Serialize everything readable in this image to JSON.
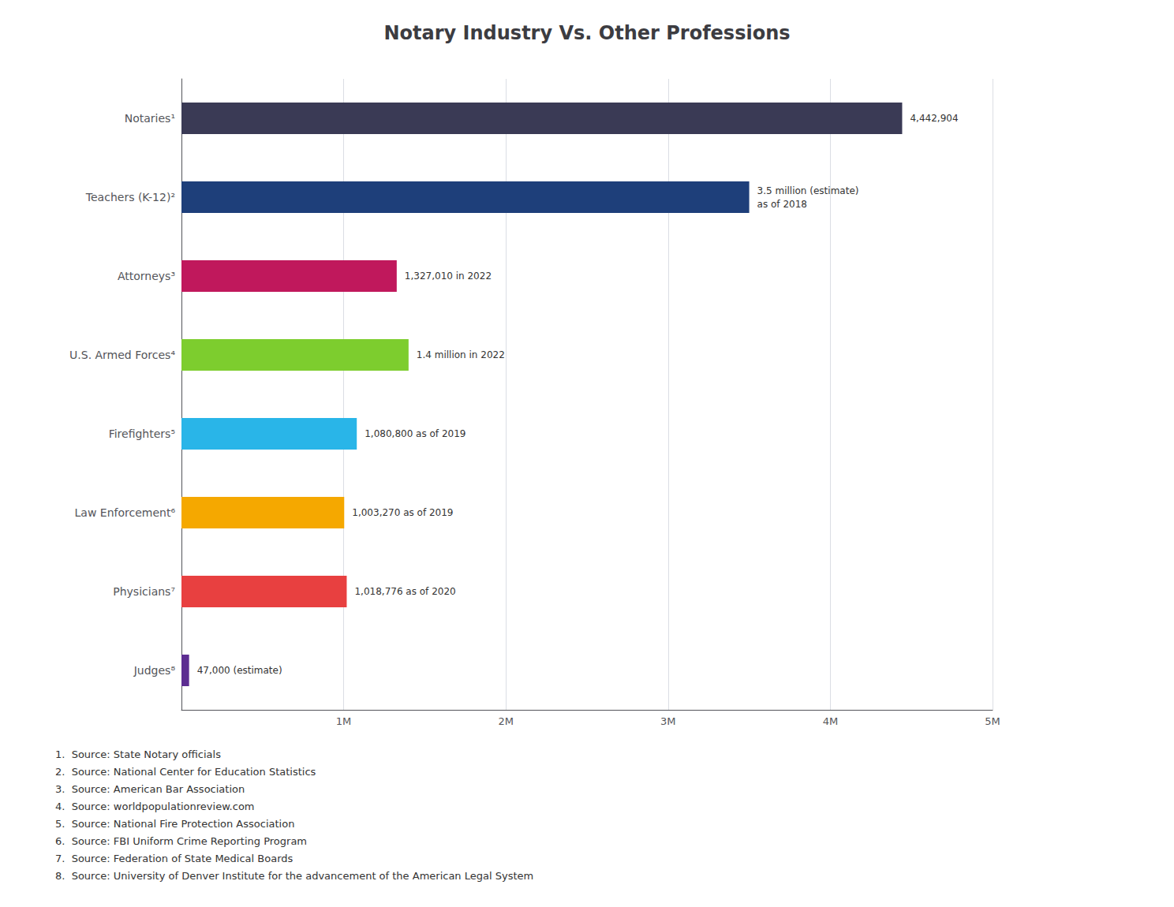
{
  "chart_data": {
    "type": "bar",
    "orientation": "horizontal",
    "title": "Notary Industry Vs. Other Professions",
    "categories": [
      "Notaries¹",
      "Teachers (K-12)²",
      "Attorneys³",
      "U.S. Armed Forces⁴",
      "Firefighters⁵",
      "Law Enforcement⁶",
      "Physicians⁷",
      "Judges⁸"
    ],
    "values": [
      4442904,
      3500000,
      1327010,
      1400000,
      1080800,
      1003270,
      1018776,
      47000
    ],
    "colors": [
      "#3a3a55",
      "#1e3f7a",
      "#c0185c",
      "#7dcd2e",
      "#29b5e8",
      "#f5a800",
      "#e84040",
      "#5c2d91"
    ],
    "data_labels": true,
    "value_labels": [
      "4,442,904",
      "3.5 million (estimate)\nas of 2018",
      "1,327,010 in 2022",
      "1.4 million in 2022",
      "1,080,800 as of 2019",
      "1,003,270 as of 2019",
      "1,018,776 as of 2020",
      "47,000 (estimate)"
    ],
    "xlim": [
      0,
      5000000
    ],
    "xticks": [
      {
        "value": 1000000,
        "label": "1M"
      },
      {
        "value": 2000000,
        "label": "2M"
      },
      {
        "value": 3000000,
        "label": "3M"
      },
      {
        "value": 4000000,
        "label": "4M"
      },
      {
        "value": 5000000,
        "label": "5M"
      }
    ],
    "grid": true,
    "annotations": [
      "1.  Source: State Notary officials",
      "2.  Source: National Center for Education Statistics",
      "3.  Source: American Bar Association",
      "4.  Source: worldpopulationreview.com",
      "5.  Source: National Fire Protection Association",
      "6.  Source: FBI Uniform Crime Reporting Program",
      "7.  Source: Federation of State Medical Boards",
      "8.  Source: University of Denver Institute for the advancement of the American Legal System"
    ]
  }
}
